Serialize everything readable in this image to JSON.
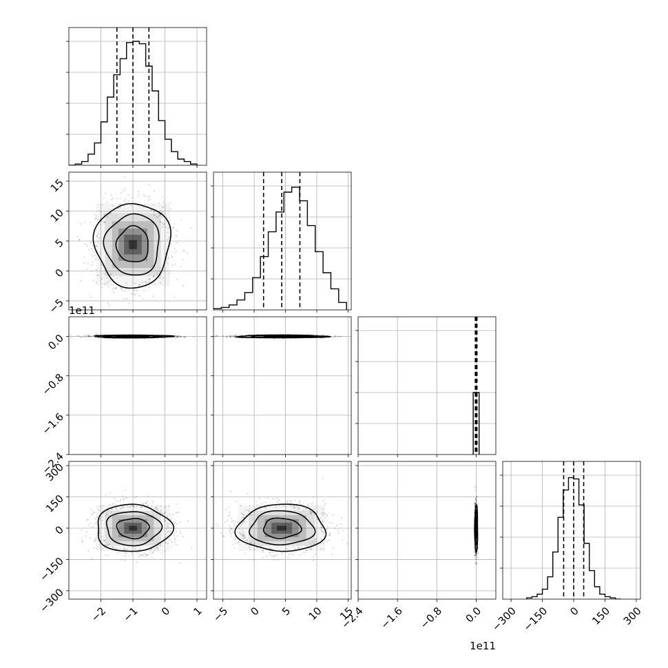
{
  "chart_data": {
    "type": "corner",
    "parameters": 4,
    "grid": true,
    "panels": [
      {
        "kind": "hist",
        "row": 0,
        "col": 0,
        "xlim": [
          -3.0,
          1.3
        ],
        "bins": [
          -3.0,
          -2.8,
          -2.6,
          -2.4,
          -2.2,
          -2.0,
          -1.8,
          -1.6,
          -1.4,
          -1.2,
          -1.0,
          -0.8,
          -0.6,
          -0.4,
          -0.2,
          0.0,
          0.2,
          0.4,
          0.6,
          0.8,
          1.0
        ],
        "counts": [
          0.0,
          0.01,
          0.03,
          0.09,
          0.18,
          0.35,
          0.55,
          0.73,
          0.86,
          0.99,
          1.0,
          0.98,
          0.8,
          0.6,
          0.36,
          0.21,
          0.11,
          0.05,
          0.03,
          0.01
        ],
        "quantiles": [
          -1.5,
          -1.0,
          -0.5
        ]
      },
      {
        "kind": "hist",
        "row": 1,
        "col": 1,
        "xlim": [
          -6.5,
          15.5
        ],
        "bins": [
          -6.5,
          -5.25,
          -4.0,
          -2.75,
          -1.5,
          -0.25,
          1.0,
          2.25,
          3.5,
          4.75,
          6.0,
          7.25,
          8.5,
          9.75,
          11.0,
          12.25,
          13.5,
          14.75
        ],
        "counts": [
          0.01,
          0.02,
          0.04,
          0.08,
          0.14,
          0.26,
          0.43,
          0.63,
          0.79,
          0.95,
          0.99,
          0.88,
          0.68,
          0.47,
          0.3,
          0.17,
          0.06
        ],
        "quantiles": [
          1.5,
          4.4,
          7.3
        ]
      },
      {
        "kind": "hist",
        "row": 2,
        "col": 2,
        "xlim": [
          -2.4,
          0.4
        ],
        "bins": [
          -0.06,
          0.0,
          0.06
        ],
        "counts": [
          0.5,
          0.5
        ],
        "quantiles": [
          0.0,
          0.0,
          0.0
        ]
      },
      {
        "kind": "hist",
        "row": 3,
        "col": 3,
        "xlim": [
          -340,
          320
        ],
        "bins": [
          -225,
          -200,
          -175,
          -150,
          -125,
          -100,
          -75,
          -50,
          -25,
          0,
          25,
          50,
          75,
          100,
          125,
          150,
          175,
          200,
          225
        ],
        "counts": [
          0.01,
          0.02,
          0.04,
          0.08,
          0.18,
          0.38,
          0.66,
          0.88,
          0.98,
          0.97,
          0.76,
          0.45,
          0.23,
          0.1,
          0.04,
          0.02,
          0.01,
          0.0
        ],
        "quantiles": [
          -48,
          0,
          48
        ]
      },
      {
        "kind": "2d",
        "row": 1,
        "col": 0,
        "xlim": [
          -3.0,
          1.3
        ],
        "ylim": [
          -6.5,
          16.5
        ],
        "center": [
          -1.0,
          4.4
        ],
        "spread": [
          0.5,
          3.0
        ],
        "contour_radii": [
          1.0,
          1.7,
          2.35
        ],
        "noise": 0.08
      },
      {
        "kind": "2d",
        "row": 2,
        "col": 0,
        "xlim": [
          -3.0,
          1.3
        ],
        "ylim": [
          -2.4,
          0.4
        ],
        "center": [
          -1.0,
          0.0
        ],
        "spread": [
          0.5,
          0.012
        ],
        "contour_radii": [
          1.0,
          1.7,
          2.35
        ],
        "noise": 0.12
      },
      {
        "kind": "2d",
        "row": 3,
        "col": 0,
        "xlim": [
          -3.0,
          1.3
        ],
        "ylim": [
          -340,
          320
        ],
        "center": [
          -1.0,
          0.0
        ],
        "spread": [
          0.5,
          48.0
        ],
        "contour_radii": [
          1.0,
          1.7,
          2.35
        ],
        "noise": 0.08
      },
      {
        "kind": "2d",
        "row": 2,
        "col": 1,
        "xlim": [
          -6.5,
          15.5
        ],
        "ylim": [
          -2.4,
          0.4
        ],
        "center": [
          4.4,
          0.0
        ],
        "spread": [
          3.0,
          0.012
        ],
        "contour_radii": [
          1.0,
          1.7,
          2.35
        ],
        "noise": 0.12
      },
      {
        "kind": "2d",
        "row": 3,
        "col": 1,
        "xlim": [
          -6.5,
          15.5
        ],
        "ylim": [
          -340,
          320
        ],
        "center": [
          4.4,
          0.0
        ],
        "spread": [
          3.0,
          48.0
        ],
        "contour_radii": [
          1.0,
          1.7,
          2.35
        ],
        "noise": 0.08
      },
      {
        "kind": "2d",
        "row": 3,
        "col": 2,
        "xlim": [
          -2.4,
          0.4
        ],
        "ylim": [
          -340,
          320
        ],
        "center": [
          0.0,
          0.0
        ],
        "spread": [
          0.012,
          48.0
        ],
        "contour_radii": [
          1.0,
          1.7,
          2.35
        ],
        "noise": 0.12
      }
    ],
    "x_axes": [
      {
        "col": 0,
        "ticks": [
          -2,
          -1,
          0,
          1
        ],
        "labels": [
          "−2",
          "−1",
          "0",
          "1"
        ],
        "offset_text": ""
      },
      {
        "col": 1,
        "ticks": [
          -5,
          0,
          5,
          10,
          15
        ],
        "labels": [
          "−5",
          "0",
          "5",
          "10",
          "15"
        ],
        "offset_text": ""
      },
      {
        "col": 2,
        "ticks": [
          -2.4,
          -1.6,
          -0.8,
          0.0
        ],
        "labels": [
          "−2.4",
          "−1.6",
          "−0.8",
          "0.0"
        ],
        "offset_text": "1e11"
      },
      {
        "col": 3,
        "ticks": [
          -300,
          -150,
          0,
          150,
          300
        ],
        "labels": [
          "−300",
          "−150",
          "0",
          "150",
          "300"
        ],
        "offset_text": ""
      }
    ],
    "y_axes": [
      {
        "row": 1,
        "ticks": [
          -5,
          0,
          5,
          10,
          15
        ],
        "labels": [
          "−5",
          "0",
          "5",
          "10",
          "15"
        ],
        "offset_text": ""
      },
      {
        "row": 2,
        "ticks": [
          -2.4,
          -1.6,
          -0.8,
          0.0
        ],
        "labels": [
          "−2.4",
          "−1.6",
          "−0.8",
          "0.0"
        ],
        "offset_text": "1e11"
      },
      {
        "row": 3,
        "ticks": [
          -300,
          -150,
          0,
          150,
          300
        ],
        "labels": [
          "−300",
          "−150",
          "0",
          "150",
          "300"
        ],
        "offset_text": ""
      }
    ],
    "colors": {
      "line": "#000000",
      "grid": "#b0b0b0",
      "scatter": "#000000",
      "frame": "#000000"
    }
  }
}
